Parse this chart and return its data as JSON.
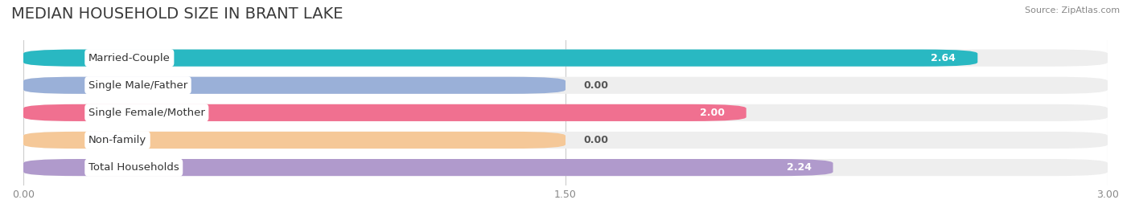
{
  "title": "MEDIAN HOUSEHOLD SIZE IN BRANT LAKE",
  "source": "Source: ZipAtlas.com",
  "categories": [
    "Married-Couple",
    "Single Male/Father",
    "Single Female/Mother",
    "Non-family",
    "Total Households"
  ],
  "values": [
    2.64,
    0.0,
    2.0,
    0.0,
    2.24
  ],
  "bar_colors": [
    "#29b8c2",
    "#9ab0d8",
    "#f07090",
    "#f5c898",
    "#b09acc"
  ],
  "xlim": [
    0,
    3.0
  ],
  "xticks": [
    0.0,
    1.5,
    3.0
  ],
  "xtick_labels": [
    "0.00",
    "1.50",
    "3.00"
  ],
  "page_background_color": "#ffffff",
  "bar_background_color": "#eeeeee",
  "title_fontsize": 14,
  "label_fontsize": 9.5,
  "value_fontsize": 9,
  "bar_height": 0.62,
  "zero_bar_width": 1.5
}
